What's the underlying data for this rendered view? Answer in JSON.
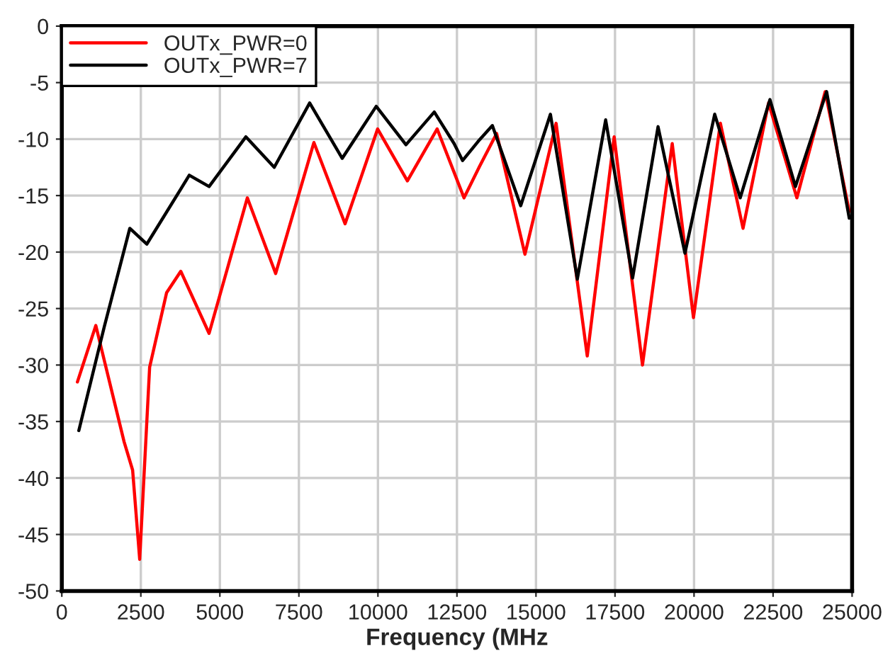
{
  "chart_data": {
    "type": "line",
    "xlabel": "Frequency (MHz",
    "xlim": [
      0,
      25000
    ],
    "xticks": [
      0,
      2500,
      5000,
      7500,
      10000,
      12500,
      15000,
      17500,
      20000,
      22500,
      25000
    ],
    "ylim": [
      -50,
      0
    ],
    "yticks": [
      -50,
      -45,
      -40,
      -35,
      -30,
      -25,
      -20,
      -15,
      -10,
      -5,
      0
    ],
    "grid": true,
    "legend": "top left",
    "line_style": "solid",
    "marker": "none",
    "series": [
      {
        "name": "OUTx_PWR=0",
        "color": "#ff0000",
        "x": [
          493,
          1075,
          1971,
          2240,
          2464,
          2778,
          3315,
          3763,
          4659,
          5869,
          6765,
          7975,
          8961,
          9991,
          10932,
          11873,
          12724,
          13217,
          13755,
          14651,
          15636,
          16622,
          17473,
          18369,
          19310,
          19982,
          20833,
          21550,
          22357,
          23253,
          24149,
          24910
        ],
        "values": [
          -31.5,
          -26.5,
          -36.8,
          -39.3,
          -47.2,
          -30.2,
          -23.6,
          -21.7,
          -27.2,
          -15.2,
          -21.9,
          -10.3,
          -17.5,
          -9.1,
          -13.7,
          -9.1,
          -15.2,
          -12.4,
          -9.5,
          -20.2,
          -8.6,
          -29.2,
          -9.8,
          -30.0,
          -10.4,
          -25.8,
          -8.6,
          -17.9,
          -6.8,
          -15.2,
          -5.8,
          -16.4
        ]
      },
      {
        "name": "OUTx_PWR=7",
        "color": "#000000",
        "x": [
          538,
          1344,
          2151,
          2688,
          4032,
          4659,
          5824,
          6720,
          7841,
          8871,
          9946,
          10887,
          11783,
          12410,
          12679,
          13172,
          13620,
          14516,
          15457,
          16308,
          17204,
          18056,
          18862,
          19713,
          20654,
          21461,
          22401,
          23208,
          24194,
          24910
        ],
        "values": [
          -35.8,
          -26.6,
          -17.9,
          -19.3,
          -13.2,
          -14.2,
          -9.8,
          -12.5,
          -6.8,
          -11.7,
          -7.1,
          -10.5,
          -7.6,
          -10.4,
          -11.9,
          -10.2,
          -8.8,
          -15.9,
          -7.8,
          -22.4,
          -8.3,
          -22.3,
          -8.9,
          -20.1,
          -7.8,
          -15.2,
          -6.5,
          -14.2,
          -5.8,
          -17.0
        ]
      }
    ]
  }
}
